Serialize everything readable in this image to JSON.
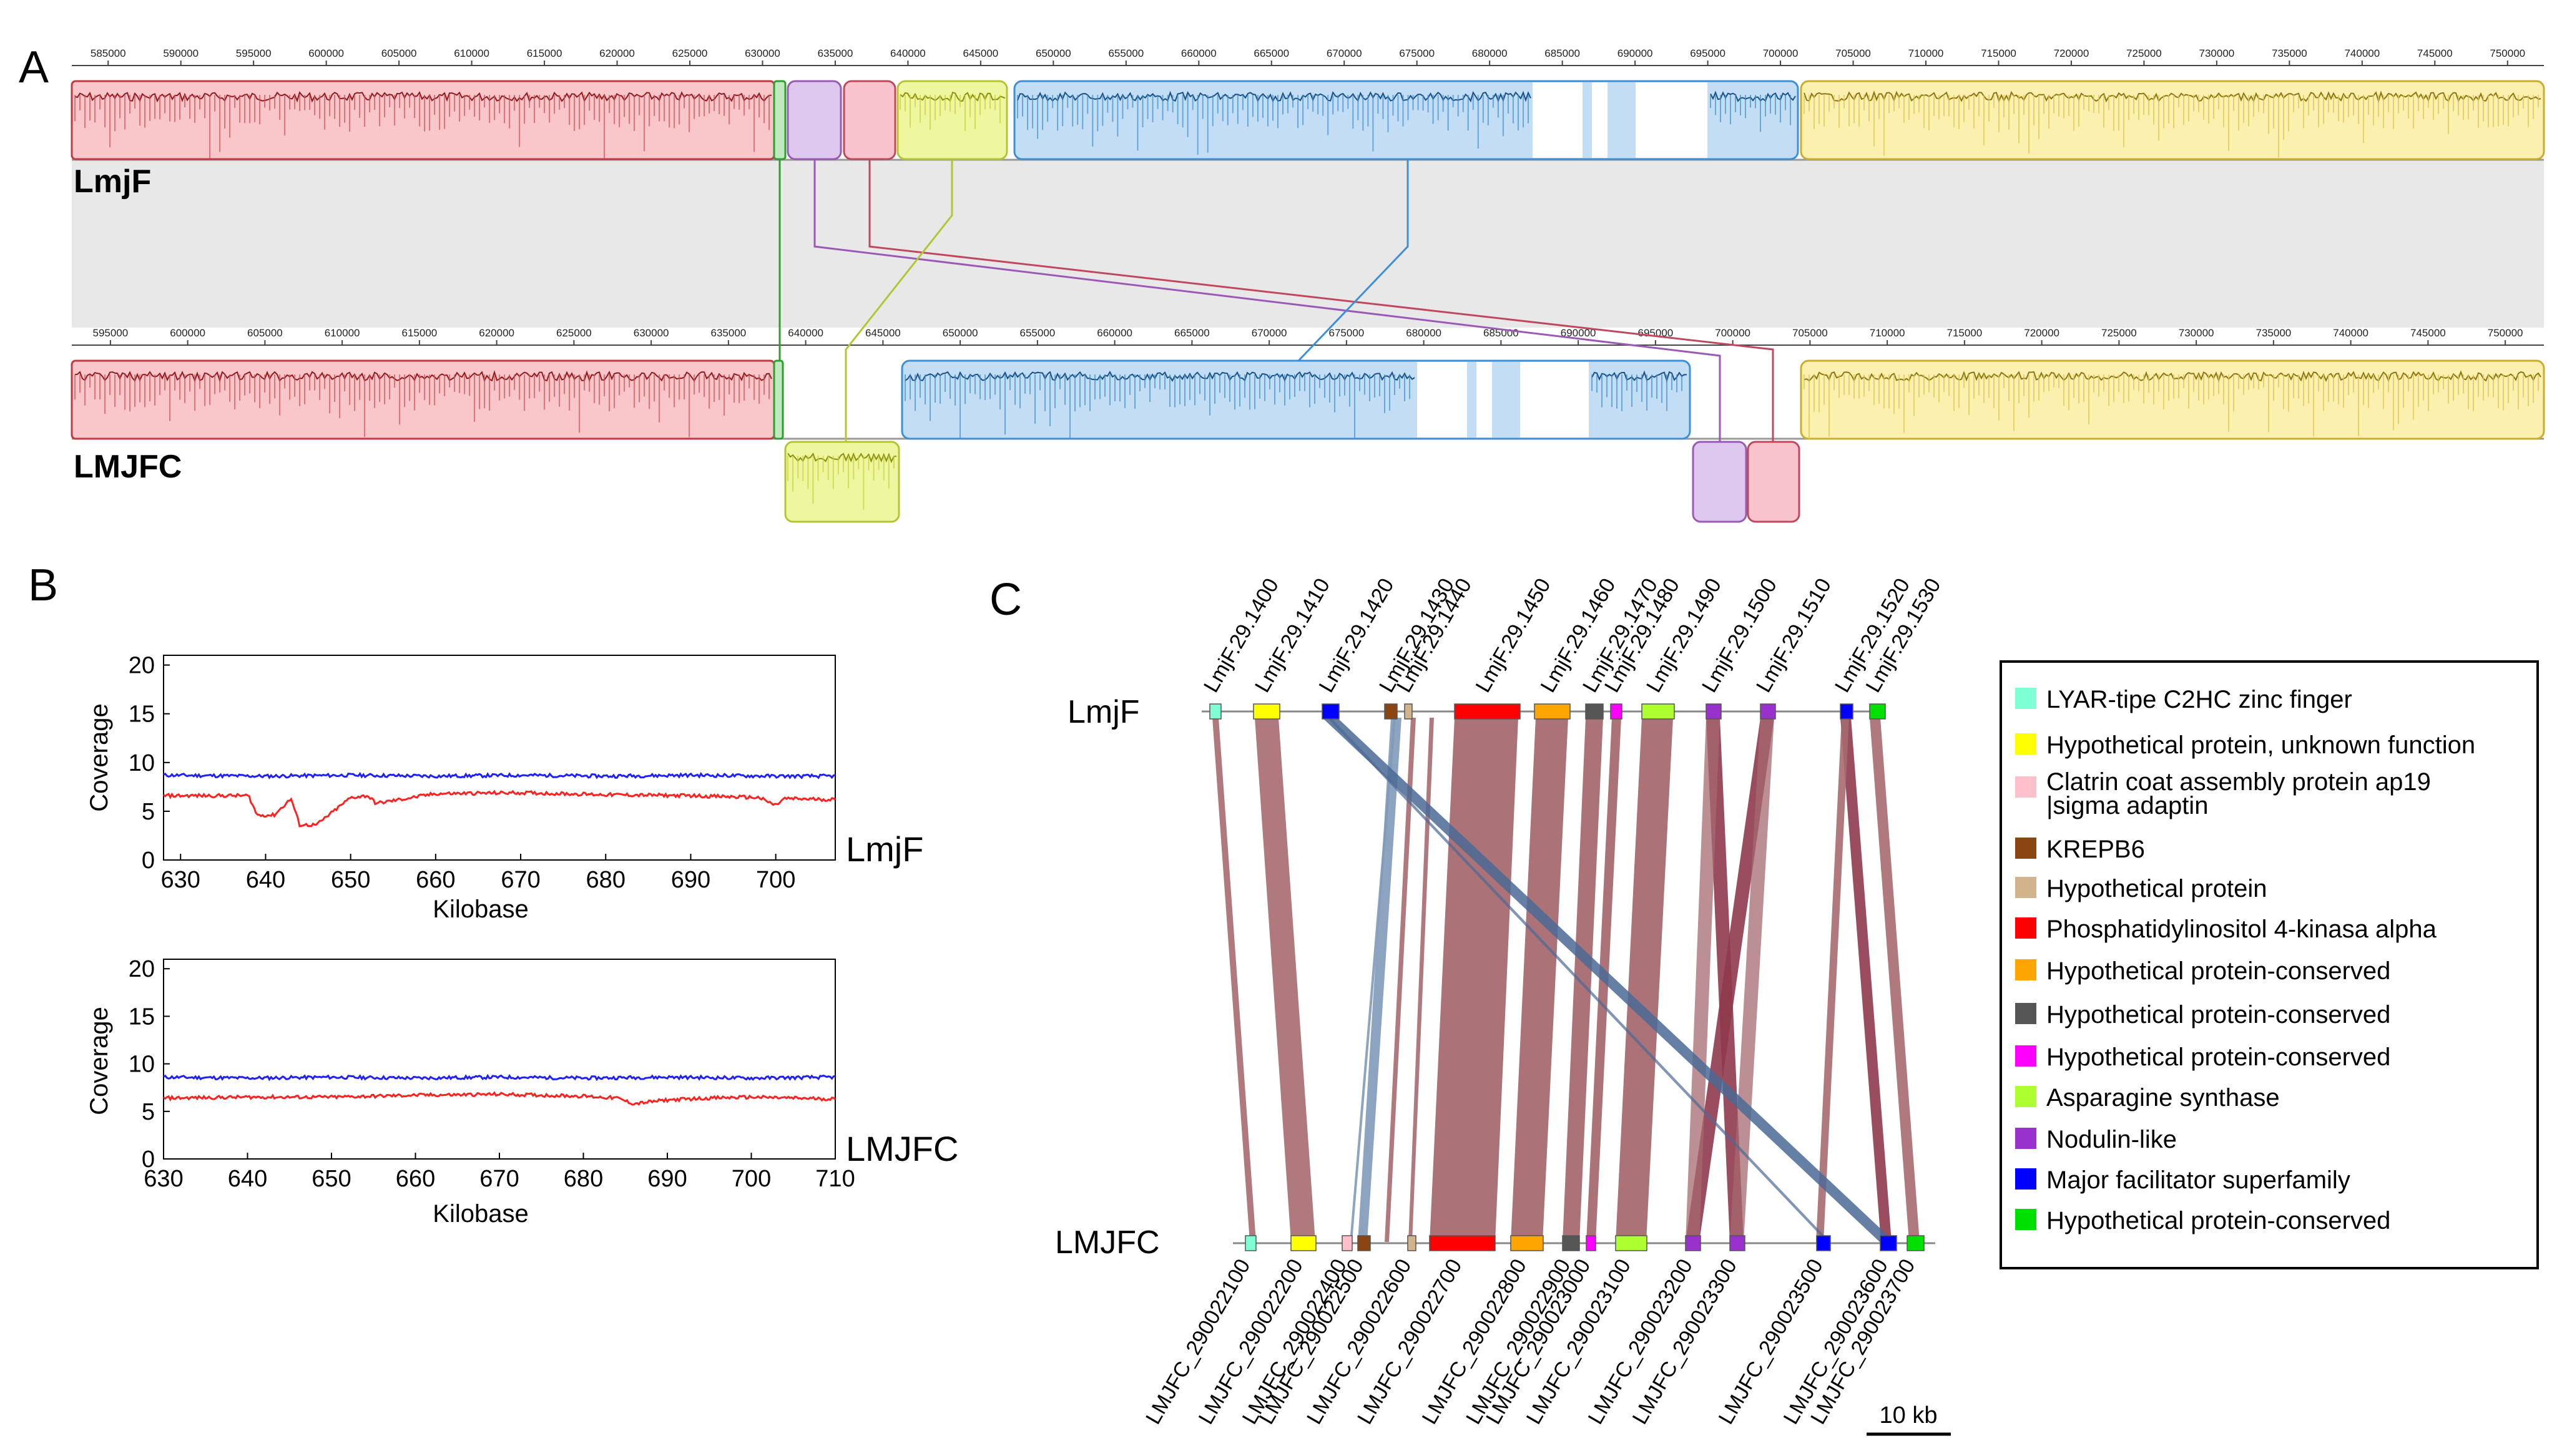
{
  "panel_labels": {
    "a": "A",
    "b": "B",
    "c": "C"
  },
  "panelA": {
    "top_genome": "LmjF",
    "bottom_genome": "LMJFC",
    "top_ticks": [
      "585000",
      "590000",
      "595000",
      "600000",
      "605000",
      "610000",
      "615000",
      "620000",
      "625000",
      "630000",
      "635000",
      "640000",
      "645000",
      "650000",
      "655000",
      "660000",
      "665000",
      "670000",
      "675000",
      "680000",
      "685000",
      "690000",
      "695000",
      "700000",
      "705000",
      "710000",
      "715000",
      "720000",
      "725000",
      "730000",
      "735000",
      "740000",
      "745000",
      "750000"
    ],
    "bottom_ticks": [
      "595000",
      "600000",
      "605000",
      "610000",
      "615000",
      "620000",
      "625000",
      "630000",
      "635000",
      "640000",
      "645000",
      "650000",
      "655000",
      "660000",
      "665000",
      "670000",
      "675000",
      "680000",
      "685000",
      "690000",
      "695000",
      "700000",
      "705000",
      "710000",
      "715000",
      "720000",
      "725000",
      "730000",
      "735000",
      "740000",
      "745000",
      "750000"
    ],
    "blocks": [
      {
        "id": "red",
        "color": "#e8454a",
        "fill": "#f9c7c9"
      },
      {
        "id": "green",
        "color": "#2ca02c",
        "fill": "#bfe9bf"
      },
      {
        "id": "purple",
        "color": "#9b59b6",
        "fill": "#ddc7ef"
      },
      {
        "id": "pink",
        "color": "#c0485e",
        "fill": "#f8c3cc"
      },
      {
        "id": "lime",
        "color": "#b5c532",
        "fill": "#eef6a0"
      },
      {
        "id": "blue",
        "color": "#3d8fd6",
        "fill": "#c3ddf5"
      },
      {
        "id": "yellow",
        "color": "#d4b933",
        "fill": "#fbf0b0"
      }
    ]
  },
  "panelB": {
    "charts": [
      {
        "label": "LmjF",
        "ylabel": "Coverage",
        "xlabel": "Kilobase",
        "xlim": [
          628,
          707
        ],
        "ylim": [
          0,
          21
        ],
        "xticks": [
          "630",
          "640",
          "650",
          "660",
          "670",
          "680",
          "690",
          "700"
        ],
        "yticks": [
          "0",
          "5",
          "10",
          "15",
          "20"
        ]
      },
      {
        "label": "LMJFC",
        "ylabel": "Coverage",
        "xlabel": "Kilobase",
        "xlim": [
          630,
          710
        ],
        "ylim": [
          0,
          21
        ],
        "xticks": [
          "630",
          "640",
          "650",
          "660",
          "670",
          "680",
          "690",
          "700",
          "710"
        ],
        "yticks": [
          "0",
          "5",
          "10",
          "15",
          "20"
        ]
      }
    ]
  },
  "chart_data": [
    {
      "type": "line",
      "title": "LmjF",
      "xlabel": "Kilobase",
      "ylabel": "Coverage",
      "xlim": [
        628,
        707
      ],
      "ylim": [
        0,
        21
      ],
      "series": [
        {
          "name": "blue",
          "color": "#1f1fff",
          "x": [
            628,
            640,
            650,
            660,
            670,
            680,
            690,
            700,
            707
          ],
          "values": [
            8.7,
            8.6,
            8.7,
            8.6,
            8.7,
            8.6,
            8.7,
            8.6,
            8.6
          ]
        },
        {
          "name": "red",
          "color": "#ff2020",
          "x": [
            628,
            638,
            639,
            641,
            643,
            644,
            646,
            650,
            652,
            653,
            660,
            670,
            680,
            690,
            698,
            700,
            701,
            707
          ],
          "values": [
            6.6,
            6.6,
            4.6,
            4.6,
            6.3,
            3.6,
            3.6,
            6.4,
            6.6,
            5.8,
            6.8,
            6.9,
            6.7,
            6.6,
            6.4,
            5.6,
            6.3,
            6.2
          ]
        }
      ]
    },
    {
      "type": "line",
      "title": "LMJFC",
      "xlabel": "Kilobase",
      "ylabel": "Coverage",
      "xlim": [
        630,
        710
      ],
      "ylim": [
        0,
        21
      ],
      "series": [
        {
          "name": "blue",
          "color": "#1f1fff",
          "x": [
            630,
            640,
            650,
            660,
            670,
            680,
            690,
            700,
            710
          ],
          "values": [
            8.6,
            8.5,
            8.6,
            8.5,
            8.6,
            8.5,
            8.6,
            8.5,
            8.6
          ]
        },
        {
          "name": "red",
          "color": "#ff2020",
          "x": [
            630,
            640,
            650,
            660,
            670,
            680,
            684,
            686,
            690,
            695,
            700,
            705,
            710
          ],
          "values": [
            6.4,
            6.5,
            6.5,
            6.7,
            6.8,
            6.6,
            6.4,
            5.8,
            6.2,
            6.4,
            6.5,
            6.4,
            6.3
          ]
        }
      ]
    }
  ],
  "panelC": {
    "top_label": "LmjF",
    "bottom_label": "LMJFC",
    "scale_label": "10 kb",
    "top_genes": [
      {
        "name": "LmjF.29.1400",
        "cat": 0
      },
      {
        "name": "LmjF.29.1410",
        "cat": 1
      },
      {
        "name": "LmjF.29.1420",
        "cat": 11
      },
      {
        "name": "LmjF.29.1430",
        "cat": 3
      },
      {
        "name": "LmjF.29.1440",
        "cat": 4
      },
      {
        "name": "LmjF.29.1450",
        "cat": 5
      },
      {
        "name": "LmjF.29.1460",
        "cat": 6
      },
      {
        "name": "LmjF.29.1470",
        "cat": 7
      },
      {
        "name": "LmjF.29.1480",
        "cat": 8
      },
      {
        "name": "LmjF.29.1490",
        "cat": 9
      },
      {
        "name": "LmjF.29.1500",
        "cat": 10
      },
      {
        "name": "LmjF.29.1510",
        "cat": 10
      },
      {
        "name": "LmjF.29.1520",
        "cat": 11
      },
      {
        "name": "LmjF.29.1530",
        "cat": 12
      }
    ],
    "bottom_genes": [
      {
        "name": "LMJFC_290022100",
        "cat": 0
      },
      {
        "name": "LMJFC_290022200",
        "cat": 1
      },
      {
        "name": "LMJFC_290022400",
        "cat": 2
      },
      {
        "name": "LMJFC_290022500",
        "cat": 3
      },
      {
        "name": "LMJFC_290022600",
        "cat": 4
      },
      {
        "name": "LMJFC_290022700",
        "cat": 5
      },
      {
        "name": "LMJFC_290022800",
        "cat": 6
      },
      {
        "name": "LMJFC_290022900",
        "cat": 7
      },
      {
        "name": "LMJFC_290023000",
        "cat": 8
      },
      {
        "name": "LMJFC_290023100",
        "cat": 9
      },
      {
        "name": "LMJFC_290023200",
        "cat": 10
      },
      {
        "name": "LMJFC_290023300",
        "cat": 10
      },
      {
        "name": "LMJFC_290023500",
        "cat": 11
      },
      {
        "name": "LMJFC_290023600",
        "cat": 11
      },
      {
        "name": "LMJFC_290023700",
        "cat": 12
      }
    ],
    "legend": [
      {
        "label": "LYAR-tipe C2HC zinc finger",
        "color": "#7fffd4"
      },
      {
        "label": "Hypothetical protein, unknown function",
        "color": "#ffff00"
      },
      {
        "label": "Clatrin coat assembly protein ap19 |sigma adaptin",
        "color": "#ffc0cb"
      },
      {
        "label": "KREPB6",
        "color": "#8b4513"
      },
      {
        "label": "Hypothetical protein",
        "color": "#d2b48c"
      },
      {
        "label": "Phosphatidylinositol 4-kinasa alpha",
        "color": "#ff0000"
      },
      {
        "label": "Hypothetical protein-conserved",
        "color": "#ffa500"
      },
      {
        "label": "Hypothetical protein-conserved",
        "color": "#555555"
      },
      {
        "label": "Hypothetical protein-conserved",
        "color": "#ff00ff"
      },
      {
        "label": "Asparagine synthase",
        "color": "#adff2f"
      },
      {
        "label": "Nodulin-like",
        "color": "#9932cc"
      },
      {
        "label": "Major facilitator superfamily",
        "color": "#0000ff"
      },
      {
        "label": "Hypothetical protein-conserved",
        "color": "#00e000"
      }
    ]
  }
}
